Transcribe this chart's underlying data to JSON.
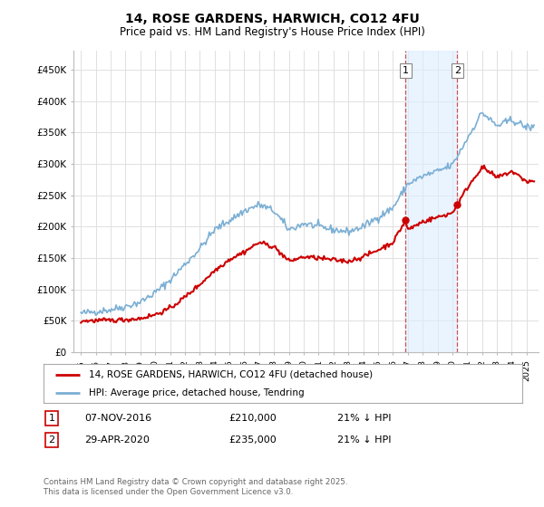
{
  "title": "14, ROSE GARDENS, HARWICH, CO12 4FU",
  "subtitle": "Price paid vs. HM Land Registry's House Price Index (HPI)",
  "legend_line1": "14, ROSE GARDENS, HARWICH, CO12 4FU (detached house)",
  "legend_line2": "HPI: Average price, detached house, Tendring",
  "footnote": "Contains HM Land Registry data © Crown copyright and database right 2025.\nThis data is licensed under the Open Government Licence v3.0.",
  "transaction1_label": "1",
  "transaction1_date": "07-NOV-2016",
  "transaction1_price": "£210,000",
  "transaction1_hpi": "21% ↓ HPI",
  "transaction2_label": "2",
  "transaction2_date": "29-APR-2020",
  "transaction2_price": "£235,000",
  "transaction2_hpi": "21% ↓ HPI",
  "hpi_color": "#7bafd4",
  "price_color": "#cc0000",
  "marker1_x": 2016.85,
  "marker1_y": 210000,
  "marker2_x": 2020.33,
  "marker2_y": 235000,
  "vline1_x": 2016.85,
  "vline2_x": 2020.33,
  "ylim_min": 0,
  "ylim_max": 480000,
  "yticks": [
    0,
    50000,
    100000,
    150000,
    200000,
    250000,
    300000,
    350000,
    400000,
    450000
  ],
  "ytick_labels": [
    "£0",
    "£50K",
    "£100K",
    "£150K",
    "£200K",
    "£250K",
    "£300K",
    "£350K",
    "£400K",
    "£450K"
  ],
  "xlim_min": 1994.5,
  "xlim_max": 2025.8,
  "background_color": "#ffffff",
  "grid_color": "#e0e0e0",
  "shade_color": "#ddeeff"
}
